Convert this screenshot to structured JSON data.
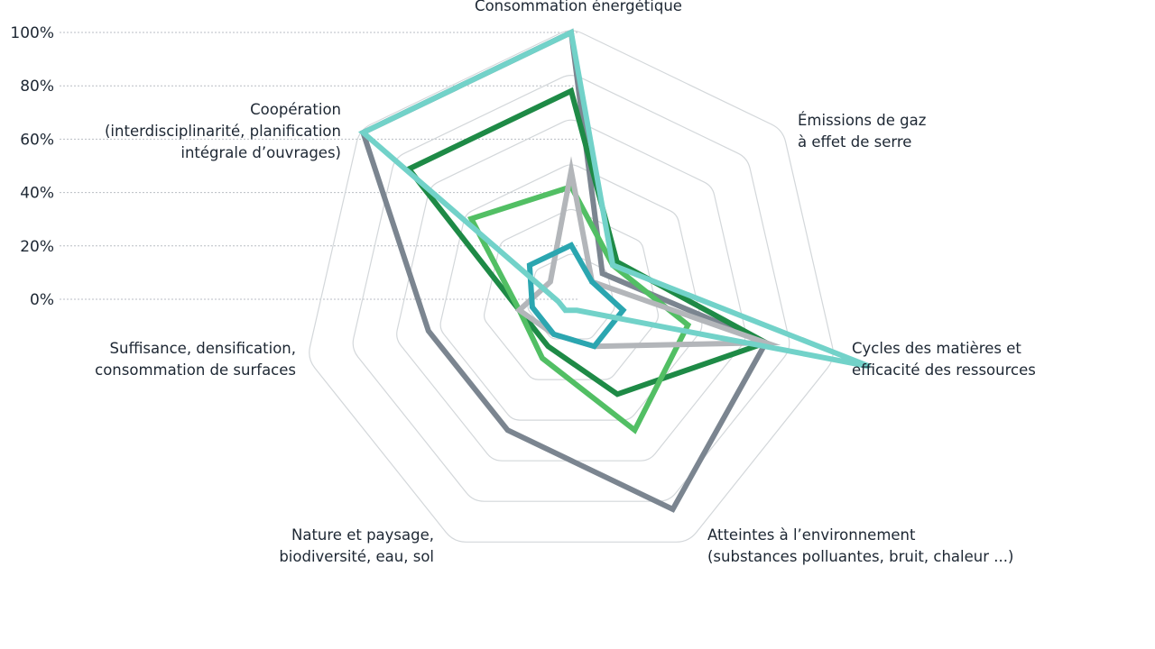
{
  "chart_data": {
    "type": "radar",
    "y_axis": {
      "ticks": [
        "100%",
        "80%",
        "60%",
        "40%",
        "20%",
        "0%"
      ]
    },
    "axes": [
      [
        "Consommation énergétique"
      ],
      [
        "Émissions de gaz",
        "à effet de serre"
      ],
      [
        "Cycles des matières et",
        "efficacité des ressources"
      ],
      [
        "Atteintes à l’environnement",
        "(substances polluantes, bruit, chaleur ...)"
      ],
      [
        "Nature et paysage,",
        "biodiversité, eau, sol"
      ],
      [
        "Suffisance, densification,",
        "consommation de surfaces"
      ],
      [
        "Coopération",
        "(interdisciplinarité, planification",
        "intégrale d’ouvrages)"
      ]
    ],
    "ylim": [
      0,
      100
    ],
    "rings": 6,
    "series": [
      {
        "color": "#7b8590",
        "values": [
          100,
          15,
          75,
          88,
          55,
          55,
          100
        ]
      },
      {
        "color": "#1e8a46",
        "values": [
          78,
          22,
          75,
          40,
          20,
          20,
          78
        ]
      },
      {
        "color": "#52bf64",
        "values": [
          42,
          20,
          45,
          55,
          25,
          20,
          48
        ]
      },
      {
        "color": "#b3b6ba",
        "values": [
          48,
          10,
          75,
          20,
          15,
          20,
          10
        ]
      },
      {
        "color": "#2ba6b0",
        "values": [
          20,
          10,
          20,
          20,
          15,
          15,
          20
        ]
      },
      {
        "color": "#72d2c9",
        "values": [
          100,
          20,
          115,
          5,
          5,
          5,
          100
        ]
      }
    ]
  }
}
